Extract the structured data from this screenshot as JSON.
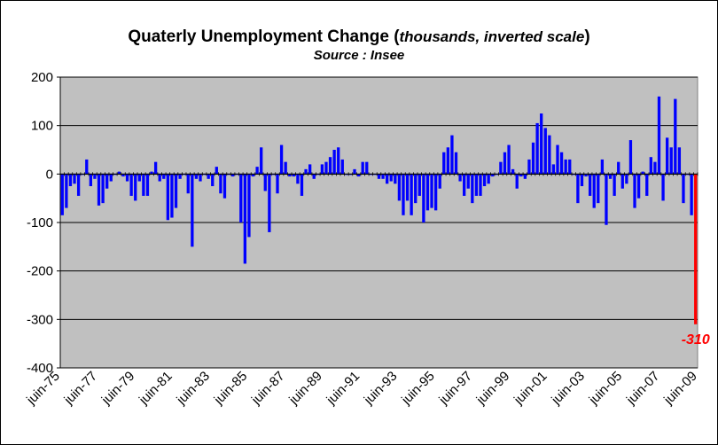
{
  "chart_data": {
    "type": "bar",
    "title": "Quaterly Unemployment Change",
    "title_paren_open": "(",
    "title_paren_text": "thousands, inverted scale",
    "title_paren_close": ")",
    "subtitle": "Source : Insee",
    "xlabel": "",
    "ylabel": "",
    "ylim": [
      -400,
      200
    ],
    "yticks": [
      200,
      100,
      0,
      -100,
      -200,
      -300,
      -400
    ],
    "xtick_labels": [
      "juin-75",
      "juin-77",
      "juin-79",
      "juin-81",
      "juin-83",
      "juin-85",
      "juin-87",
      "juin-89",
      "juin-91",
      "juin-93",
      "juin-95",
      "juin-97",
      "juin-99",
      "juin-01",
      "juin-03",
      "juin-05",
      "juin-07",
      "juin-09"
    ],
    "grid": "horizontal",
    "plot_background": "#c0c0c0",
    "bar_color": "#0000ff",
    "highlight_color": "#ff0000",
    "highlight_label": "-310",
    "series": [
      {
        "values": [
          -85,
          -70,
          -25,
          -20,
          -45,
          0,
          30,
          -25,
          -10,
          -65,
          -60,
          -30,
          -15,
          0,
          5,
          -5,
          -15,
          -45,
          -55,
          -15,
          -45,
          -45,
          5,
          25,
          -15,
          -10,
          -95,
          -90,
          -70,
          -10,
          0,
          -40,
          -150,
          -10,
          -15,
          0,
          -10,
          -25,
          15,
          -40,
          -50,
          0,
          -5,
          0,
          -100,
          -185,
          -130,
          -5,
          15,
          55,
          -35,
          -120,
          0,
          -40,
          60,
          25,
          -5,
          -5,
          -20,
          -45,
          10,
          20,
          -10,
          0,
          20,
          25,
          35,
          50,
          55,
          30,
          0,
          0,
          10,
          -5,
          25,
          25,
          0,
          0,
          -10,
          -10,
          -20,
          -15,
          -20,
          -55,
          -85,
          -55,
          -85,
          -60,
          -45,
          -100,
          -75,
          -70,
          -75,
          -30,
          45,
          55,
          80,
          45,
          -15,
          -45,
          -30,
          -60,
          -45,
          -45,
          -25,
          -20,
          -5,
          0,
          25,
          45,
          60,
          10,
          -30,
          -5,
          -10,
          30,
          65,
          105,
          125,
          95,
          80,
          20,
          60,
          45,
          30,
          30,
          0,
          -60,
          -25,
          -5,
          -45,
          -70,
          -60,
          30,
          -105,
          -10,
          -45,
          25,
          -30,
          -20,
          70,
          -70,
          -50,
          5,
          -45,
          35,
          25,
          160,
          -55,
          75,
          55,
          155,
          55,
          -60,
          0,
          -85,
          -310
        ]
      }
    ]
  }
}
